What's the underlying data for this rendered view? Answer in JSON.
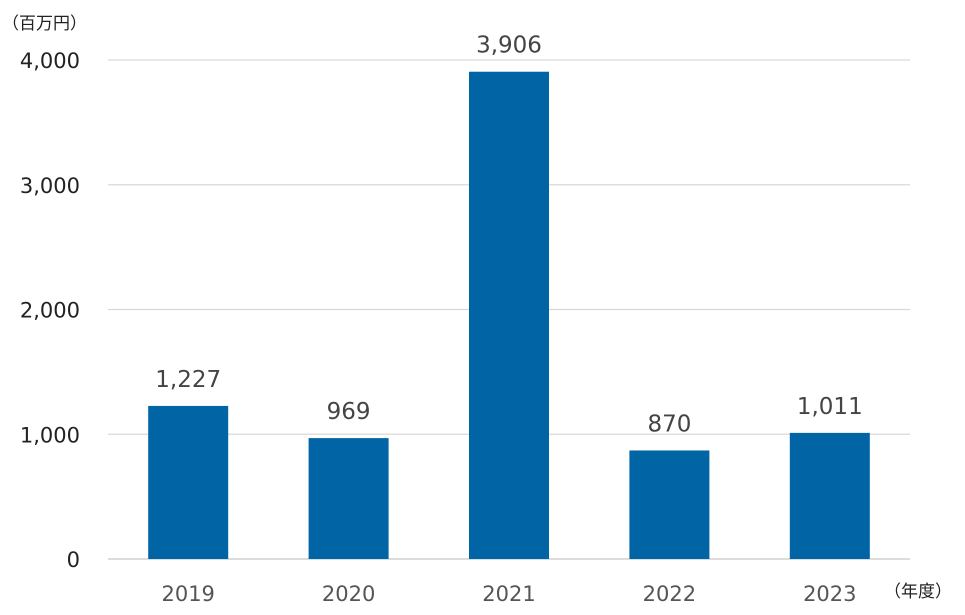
{
  "chart_data": {
    "type": "bar",
    "y_unit": "（百万円）",
    "x_unit": "（年度）",
    "categories": [
      "2019",
      "2020",
      "2021",
      "2022",
      "2023"
    ],
    "values": [
      1227,
      969,
      3906,
      870,
      1011
    ],
    "value_labels": [
      "1,227",
      "969",
      "3,906",
      "870",
      "1,011"
    ],
    "y_ticks": [
      0,
      1000,
      2000,
      3000,
      4000
    ],
    "y_tick_labels": [
      "0",
      "1,000",
      "2,000",
      "3,000",
      "4,000"
    ],
    "ylim": [
      0,
      4000
    ],
    "grid": true,
    "legend": "none",
    "bar_color": "#0064a5"
  }
}
